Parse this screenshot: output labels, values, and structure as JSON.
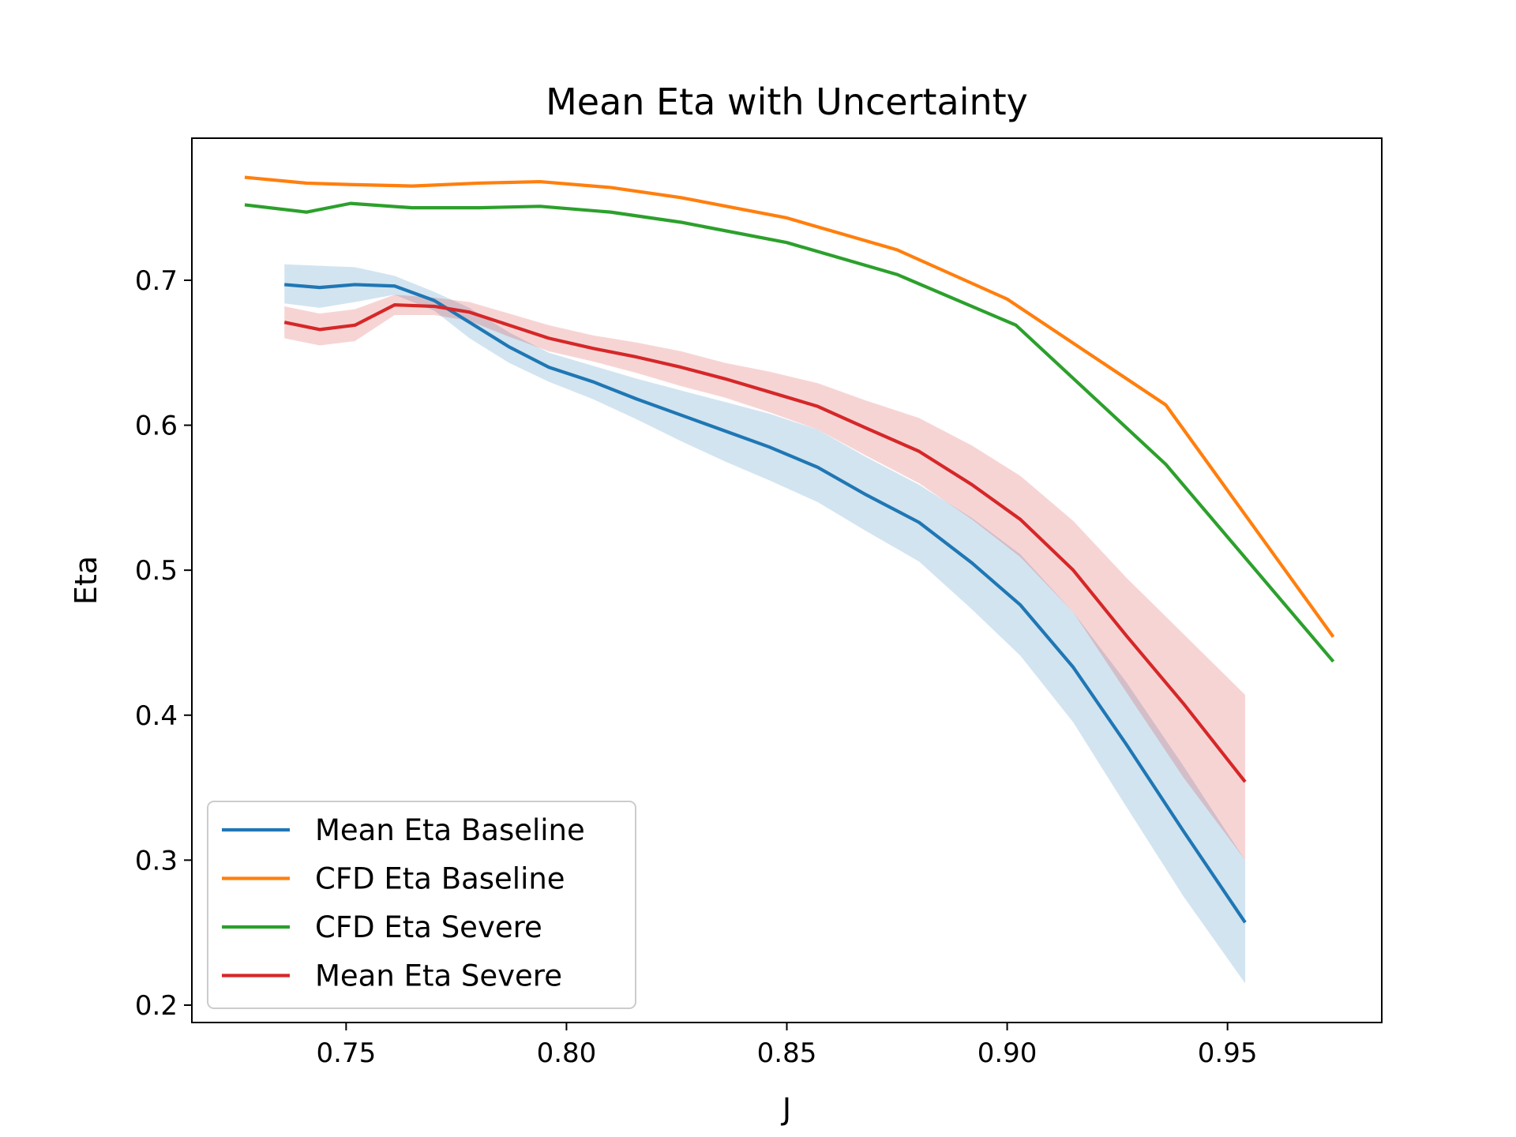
{
  "chart_data": {
    "type": "line",
    "title": "Mean Eta with Uncertainty",
    "xlabel": "J",
    "ylabel": "Eta",
    "xlim": [
      0.715,
      0.985
    ],
    "ylim": [
      0.188,
      0.798
    ],
    "xticks": [
      0.75,
      0.8,
      0.85,
      0.9,
      0.95
    ],
    "xtick_labels": [
      "0.75",
      "0.80",
      "0.85",
      "0.90",
      "0.95"
    ],
    "yticks": [
      0.2,
      0.3,
      0.4,
      0.5,
      0.6,
      0.7
    ],
    "ytick_labels": [
      "0.2",
      "0.3",
      "0.4",
      "0.5",
      "0.6",
      "0.7"
    ],
    "grid": false,
    "legend_position": "lower-left",
    "series": [
      {
        "name": "Mean Eta Baseline",
        "color": "#1f77b4",
        "x": [
          0.736,
          0.744,
          0.752,
          0.761,
          0.77,
          0.778,
          0.787,
          0.796,
          0.806,
          0.816,
          0.826,
          0.836,
          0.846,
          0.857,
          0.868,
          0.88,
          0.892,
          0.903,
          0.915,
          0.927,
          0.94,
          0.954
        ],
        "y": [
          0.697,
          0.695,
          0.697,
          0.696,
          0.686,
          0.671,
          0.654,
          0.64,
          0.63,
          0.618,
          0.607,
          0.596,
          0.585,
          0.571,
          0.552,
          0.533,
          0.505,
          0.476,
          0.433,
          0.38,
          0.32,
          0.257
        ],
        "band_low": [
          0.684,
          0.681,
          0.685,
          0.69,
          0.679,
          0.66,
          0.643,
          0.63,
          0.618,
          0.604,
          0.589,
          0.575,
          0.562,
          0.547,
          0.527,
          0.506,
          0.473,
          0.441,
          0.395,
          0.337,
          0.275,
          0.215
        ],
        "band_high": [
          0.711,
          0.71,
          0.709,
          0.703,
          0.692,
          0.681,
          0.664,
          0.65,
          0.641,
          0.632,
          0.624,
          0.616,
          0.608,
          0.597,
          0.578,
          0.559,
          0.536,
          0.511,
          0.471,
          0.423,
          0.365,
          0.3
        ]
      },
      {
        "name": "CFD Eta Baseline",
        "color": "#ff7f0e",
        "x": [
          0.727,
          0.741,
          0.751,
          0.765,
          0.78,
          0.794,
          0.81,
          0.826,
          0.85,
          0.875,
          0.9,
          0.936,
          0.974
        ],
        "y": [
          0.771,
          0.767,
          0.766,
          0.765,
          0.767,
          0.768,
          0.764,
          0.757,
          0.743,
          0.721,
          0.687,
          0.614,
          0.454
        ]
      },
      {
        "name": "CFD Eta Severe",
        "color": "#2ca02c",
        "x": [
          0.727,
          0.741,
          0.751,
          0.765,
          0.78,
          0.794,
          0.81,
          0.826,
          0.85,
          0.875,
          0.902,
          0.936,
          0.974
        ],
        "y": [
          0.752,
          0.747,
          0.753,
          0.75,
          0.75,
          0.751,
          0.747,
          0.74,
          0.726,
          0.704,
          0.669,
          0.573,
          0.437
        ]
      },
      {
        "name": "Mean Eta Severe",
        "color": "#d62728",
        "x": [
          0.736,
          0.744,
          0.752,
          0.761,
          0.77,
          0.778,
          0.787,
          0.796,
          0.806,
          0.816,
          0.826,
          0.836,
          0.846,
          0.857,
          0.868,
          0.88,
          0.892,
          0.903,
          0.915,
          0.927,
          0.94,
          0.954
        ],
        "y": [
          0.671,
          0.666,
          0.669,
          0.683,
          0.682,
          0.678,
          0.669,
          0.66,
          0.653,
          0.647,
          0.64,
          0.632,
          0.623,
          0.613,
          0.598,
          0.582,
          0.559,
          0.535,
          0.5,
          0.455,
          0.408,
          0.354
        ],
        "band_low": [
          0.66,
          0.655,
          0.658,
          0.676,
          0.676,
          0.672,
          0.661,
          0.651,
          0.644,
          0.636,
          0.627,
          0.619,
          0.609,
          0.597,
          0.579,
          0.56,
          0.535,
          0.509,
          0.471,
          0.416,
          0.357,
          0.3
        ],
        "band_high": [
          0.682,
          0.677,
          0.68,
          0.69,
          0.688,
          0.685,
          0.677,
          0.669,
          0.662,
          0.657,
          0.651,
          0.643,
          0.637,
          0.629,
          0.617,
          0.605,
          0.586,
          0.565,
          0.534,
          0.495,
          0.456,
          0.414
        ]
      }
    ]
  }
}
